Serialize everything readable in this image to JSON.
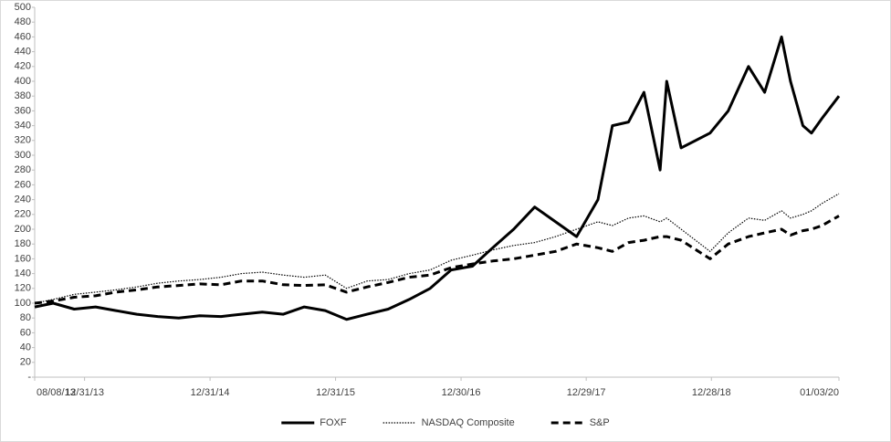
{
  "chart_data": {
    "type": "line",
    "x": [
      "08/08/13",
      "10/01/13",
      "12/01/13",
      "02/01/14",
      "04/01/14",
      "06/01/14",
      "08/01/14",
      "10/01/14",
      "12/01/14",
      "02/01/15",
      "04/01/15",
      "06/01/15",
      "08/01/15",
      "10/01/15",
      "12/01/15",
      "02/01/16",
      "04/01/16",
      "06/01/16",
      "08/01/16",
      "10/01/16",
      "12/01/16",
      "02/01/17",
      "04/01/17",
      "06/01/17",
      "08/01/17",
      "10/01/17",
      "12/01/17",
      "02/01/18",
      "03/15/18",
      "05/01/18",
      "06/15/18",
      "08/01/18",
      "08/20/18",
      "10/01/18",
      "12/24/18",
      "02/15/19",
      "04/15/19",
      "06/01/19",
      "07/20/19",
      "08/15/19",
      "09/20/19",
      "10/15/19",
      "11/15/19",
      "01/03/20"
    ],
    "series": [
      {
        "name": "FOXF",
        "color": "#000000",
        "linestyle": "solid",
        "values": [
          95,
          100,
          92,
          95,
          90,
          85,
          82,
          80,
          83,
          82,
          85,
          88,
          85,
          95,
          90,
          78,
          85,
          92,
          105,
          120,
          145,
          150,
          175,
          200,
          230,
          210,
          190,
          240,
          340,
          345,
          385,
          280,
          400,
          310,
          330,
          360,
          420,
          385,
          460,
          400,
          340,
          330,
          350,
          380
        ]
      },
      {
        "name": "NASDAQ Composite",
        "color": "#000000",
        "linestyle": "dotted",
        "values": [
          100,
          105,
          112,
          115,
          118,
          122,
          127,
          130,
          132,
          135,
          140,
          142,
          138,
          135,
          138,
          120,
          130,
          132,
          140,
          145,
          158,
          165,
          172,
          178,
          182,
          190,
          200,
          210,
          205,
          215,
          218,
          210,
          215,
          200,
          170,
          195,
          215,
          212,
          225,
          215,
          220,
          225,
          235,
          248
        ]
      },
      {
        "name": "S&P",
        "color": "#000000",
        "linestyle": "dashed",
        "values": [
          100,
          103,
          108,
          110,
          115,
          118,
          122,
          124,
          126,
          125,
          130,
          130,
          125,
          124,
          125,
          115,
          122,
          128,
          135,
          138,
          148,
          153,
          157,
          160,
          165,
          170,
          180,
          175,
          170,
          182,
          185,
          190,
          190,
          185,
          160,
          180,
          190,
          195,
          200,
          192,
          198,
          200,
          205,
          218
        ]
      }
    ],
    "xlim": [
      "08/08/13",
      "01/03/20"
    ],
    "xticks": [
      "08/08/13",
      "12/31/13",
      "12/31/14",
      "12/31/15",
      "12/30/16",
      "12/29/17",
      "12/28/18",
      "01/03/20"
    ],
    "ylim": [
      0,
      500
    ],
    "yticks": [
      {
        "value": 0,
        "label": "-"
      },
      20,
      40,
      60,
      80,
      100,
      120,
      140,
      160,
      180,
      200,
      220,
      240,
      260,
      280,
      300,
      320,
      340,
      360,
      380,
      400,
      420,
      440,
      460,
      480,
      500
    ],
    "grid": false,
    "legend": "bottom"
  }
}
